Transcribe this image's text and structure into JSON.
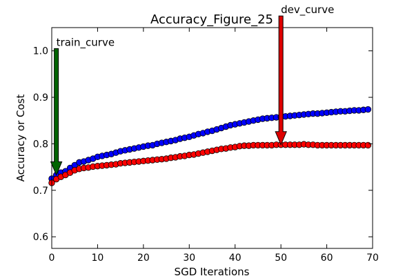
{
  "chart_data": {
    "type": "scatter",
    "title": "Accuracy_Figure_25",
    "xlabel": "SGD Iterations",
    "ylabel": "Accuracy or Cost",
    "xlim": [
      0,
      70
    ],
    "ylim": [
      0.575,
      1.05
    ],
    "xticks": [
      "0",
      "10",
      "20",
      "30",
      "40",
      "50",
      "60",
      "70"
    ],
    "yticks": [
      "0.6",
      "0.7",
      "0.8",
      "0.9",
      "1.0"
    ],
    "grid": false,
    "x": [
      0,
      1,
      2,
      3,
      4,
      5,
      6,
      7,
      8,
      9,
      10,
      11,
      12,
      13,
      14,
      15,
      16,
      17,
      18,
      19,
      20,
      21,
      22,
      23,
      24,
      25,
      26,
      27,
      28,
      29,
      30,
      31,
      32,
      33,
      34,
      35,
      36,
      37,
      38,
      39,
      40,
      41,
      42,
      43,
      44,
      45,
      46,
      47,
      48,
      49,
      50,
      51,
      52,
      53,
      54,
      55,
      56,
      57,
      58,
      59,
      60,
      61,
      62,
      63,
      64,
      65,
      66,
      67,
      68,
      69
    ],
    "series": [
      {
        "name": "train_curve",
        "color": "#0000ff",
        "values": [
          0.725,
          0.733,
          0.738,
          0.741,
          0.748,
          0.754,
          0.76,
          0.762,
          0.765,
          0.768,
          0.772,
          0.774,
          0.776,
          0.778,
          0.781,
          0.784,
          0.786,
          0.788,
          0.79,
          0.792,
          0.794,
          0.796,
          0.797,
          0.8,
          0.802,
          0.804,
          0.806,
          0.808,
          0.811,
          0.813,
          0.815,
          0.818,
          0.821,
          0.823,
          0.826,
          0.828,
          0.831,
          0.834,
          0.837,
          0.84,
          0.842,
          0.844,
          0.846,
          0.848,
          0.85,
          0.852,
          0.854,
          0.855,
          0.856,
          0.857,
          0.858,
          0.859,
          0.86,
          0.861,
          0.862,
          0.863,
          0.864,
          0.865,
          0.865,
          0.866,
          0.867,
          0.868,
          0.869,
          0.87,
          0.87,
          0.871,
          0.872,
          0.872,
          0.873,
          0.874
        ]
      },
      {
        "name": "dev_curve",
        "color": "#ff0000",
        "values": [
          0.716,
          0.724,
          0.729,
          0.733,
          0.738,
          0.743,
          0.746,
          0.748,
          0.749,
          0.751,
          0.752,
          0.753,
          0.754,
          0.755,
          0.756,
          0.758,
          0.759,
          0.76,
          0.761,
          0.762,
          0.763,
          0.764,
          0.765,
          0.766,
          0.767,
          0.768,
          0.77,
          0.771,
          0.773,
          0.774,
          0.776,
          0.777,
          0.779,
          0.781,
          0.783,
          0.785,
          0.787,
          0.789,
          0.79,
          0.792,
          0.793,
          0.795,
          0.796,
          0.796,
          0.797,
          0.797,
          0.797,
          0.797,
          0.797,
          0.798,
          0.798,
          0.798,
          0.798,
          0.798,
          0.798,
          0.799,
          0.798,
          0.798,
          0.797,
          0.797,
          0.797,
          0.797,
          0.797,
          0.797,
          0.797,
          0.797,
          0.797,
          0.797,
          0.797,
          0.797
        ]
      }
    ],
    "annotations": [
      {
        "text": "train_curve",
        "x": 1,
        "y_tip": 0.733,
        "y_tail": 1.005,
        "color": "#006400"
      },
      {
        "text": "dev_curve",
        "x": 50,
        "y_tip": 0.798,
        "y_tail": 1.075,
        "color": "#dd0000"
      }
    ]
  }
}
